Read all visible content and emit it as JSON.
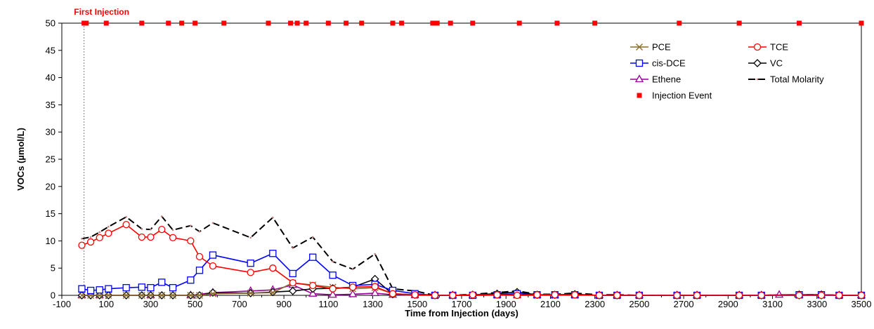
{
  "chart_data": {
    "type": "line",
    "title": "",
    "xlabel": "Time from Injection (days)",
    "ylabel": "VOCs (µmol/L)",
    "xlim": [
      -100,
      3500
    ],
    "ylim": [
      0,
      50
    ],
    "x_ticks": [
      -100,
      100,
      300,
      500,
      700,
      900,
      1100,
      1300,
      1500,
      1700,
      1900,
      2100,
      2300,
      2500,
      2700,
      2900,
      3100,
      3300,
      3500
    ],
    "y_ticks": [
      0,
      5,
      10,
      15,
      20,
      25,
      30,
      35,
      40,
      45,
      50
    ],
    "grid": false,
    "legend_position": "top-right",
    "annotation": {
      "text": "First Injection",
      "x": 0,
      "color": "#ff0000"
    },
    "series": [
      {
        "name": "PCE",
        "color": "#8b6d2c",
        "marker": "x",
        "dash": "solid",
        "x": [
          -10,
          30,
          70,
          110,
          190,
          260,
          300,
          350,
          400,
          480,
          520,
          580,
          750,
          850,
          940,
          1030,
          1120,
          1210,
          1310,
          1390,
          1490,
          1580,
          1660,
          1750,
          1860,
          1950,
          2040,
          2120,
          2210,
          2320,
          2400,
          2500,
          2670,
          2760,
          2950,
          3050,
          3220,
          3320,
          3400,
          3500
        ],
        "y": [
          0,
          0,
          0,
          0,
          0,
          0,
          0,
          0,
          0,
          0,
          0,
          0.3,
          0.4,
          0.5,
          2.3,
          1.9,
          1.5,
          1.2,
          1.4,
          0.3,
          0.1,
          0,
          0,
          0,
          0,
          0,
          0,
          0,
          0,
          0,
          0,
          0,
          0,
          0,
          0,
          0,
          0,
          0,
          0,
          0
        ]
      },
      {
        "name": "TCE",
        "color": "#ff0000",
        "marker": "circle",
        "dash": "solid",
        "x": [
          -10,
          30,
          70,
          110,
          190,
          260,
          300,
          350,
          400,
          480,
          520,
          580,
          750,
          850,
          940,
          1030,
          1120,
          1210,
          1310,
          1390,
          1490,
          1580,
          1660,
          1750,
          1860,
          1950,
          2040,
          2120,
          2210,
          2320,
          2400,
          2500,
          2670,
          2760,
          2950,
          3050,
          3220,
          3320,
          3400,
          3500
        ],
        "y": [
          9.2,
          9.8,
          10.6,
          11.4,
          13.0,
          10.7,
          10.7,
          12.1,
          10.6,
          10.0,
          7.1,
          5.4,
          4.2,
          5.0,
          2.3,
          1.8,
          1.2,
          1.5,
          1.6,
          0.3,
          0.1,
          0,
          0,
          0.1,
          0.1,
          0,
          0.1,
          0.1,
          0.1,
          0,
          0,
          0,
          0,
          0,
          0,
          0,
          0,
          0,
          0,
          0
        ]
      },
      {
        "name": "cis-DCE",
        "color": "#0000ff",
        "marker": "square",
        "dash": "solid",
        "x": [
          -10,
          30,
          70,
          110,
          190,
          260,
          300,
          350,
          400,
          480,
          520,
          580,
          750,
          850,
          940,
          1030,
          1120,
          1210,
          1310,
          1390,
          1490,
          1580,
          1660,
          1750,
          1860,
          1950,
          2040,
          2120,
          2210,
          2320,
          2400,
          2500,
          2670,
          2760,
          2950,
          3050,
          3220,
          3320,
          3400,
          3500
        ],
        "y": [
          1.2,
          0.9,
          1.0,
          1.2,
          1.4,
          1.5,
          1.4,
          2.4,
          1.4,
          2.8,
          4.6,
          7.4,
          5.9,
          7.7,
          4.0,
          7.0,
          3.7,
          1.8,
          2.0,
          0.9,
          0.3,
          0,
          0,
          0,
          0.1,
          0.3,
          0.1,
          0.1,
          0.1,
          0,
          0,
          0,
          0,
          0,
          0,
          0,
          0.1,
          0.1,
          0,
          0
        ]
      },
      {
        "name": "VC",
        "color": "#000000",
        "marker": "diamond",
        "dash": "solid",
        "x": [
          -10,
          30,
          70,
          110,
          190,
          260,
          300,
          350,
          400,
          480,
          520,
          580,
          750,
          850,
          940,
          1030,
          1120,
          1210,
          1310,
          1390,
          1490,
          1580,
          1660,
          1750,
          1860,
          1950,
          2040,
          2120,
          2210,
          2320,
          2400,
          2500,
          2670,
          2760,
          2950,
          3050,
          3220,
          3320,
          3400,
          3500
        ],
        "y": [
          0,
          0,
          0,
          0,
          0,
          0,
          0,
          0,
          0,
          0,
          0,
          0.5,
          0.4,
          0.6,
          0.8,
          1.2,
          1.3,
          1.5,
          3.0,
          0.2,
          0.1,
          0,
          0,
          0.1,
          0.3,
          0.6,
          0.1,
          0.1,
          0.2,
          0,
          0,
          0,
          0,
          0,
          0,
          0,
          0,
          0,
          0,
          0
        ]
      },
      {
        "name": "Ethene",
        "color": "#990099",
        "marker": "triangle",
        "dash": "solid",
        "x": [
          -10,
          70,
          300,
          480,
          580,
          750,
          850,
          940,
          1030,
          1120,
          1210,
          1310,
          1390,
          1490,
          1580,
          1660,
          1750,
          1860,
          1950,
          2040,
          2120,
          2210,
          2320,
          2400,
          2500,
          2670,
          2760,
          2950,
          3050,
          3130,
          3220,
          3320,
          3400,
          3500
        ],
        "y": [
          0,
          0,
          0,
          0,
          0.5,
          0.8,
          1.0,
          1.9,
          0.3,
          0.1,
          0.2,
          0.4,
          0.1,
          0,
          0,
          0,
          0,
          0.1,
          0,
          0,
          0,
          0.1,
          0,
          0,
          0,
          0,
          0,
          0,
          0,
          0.1,
          0.1,
          0.1,
          0,
          0
        ]
      },
      {
        "name": "Total Molarity",
        "color": "#000000",
        "marker": "dot",
        "dash": "dashed",
        "x": [
          -10,
          30,
          70,
          110,
          190,
          260,
          300,
          350,
          400,
          480,
          520,
          580,
          750,
          850,
          940,
          1030,
          1120,
          1210,
          1310,
          1390,
          1490,
          1580,
          1660,
          1750,
          1860,
          1950,
          2040,
          2120,
          2210,
          2320,
          2400,
          2500,
          2670,
          2760,
          2950,
          3050,
          3220,
          3320,
          3400,
          3500
        ],
        "y": [
          10.4,
          10.7,
          11.6,
          12.6,
          14.4,
          12.2,
          12.1,
          14.5,
          12.0,
          12.8,
          11.7,
          13.3,
          10.6,
          14.3,
          8.7,
          10.7,
          6.2,
          4.8,
          7.6,
          1.2,
          0.8,
          0,
          0,
          0.2,
          0.5,
          0.8,
          0.2,
          0.2,
          0.4,
          0.1,
          0.1,
          0,
          0,
          0,
          0,
          0,
          0.1,
          0.1,
          0,
          0
        ]
      },
      {
        "name": "Injection Event",
        "color": "#ff0000",
        "marker": "filled-square",
        "dash": "none",
        "x": [
          0,
          10,
          100,
          260,
          380,
          440,
          500,
          630,
          830,
          930,
          960,
          1000,
          1100,
          1180,
          1250,
          1390,
          1430,
          1570,
          1590,
          1650,
          1750,
          1960,
          2130,
          2300,
          2680,
          2950,
          3220,
          3500
        ],
        "y": [
          50,
          50,
          50,
          50,
          50,
          50,
          50,
          50,
          50,
          50,
          50,
          50,
          50,
          50,
          50,
          50,
          50,
          50,
          50,
          50,
          50,
          50,
          50,
          50,
          50,
          50,
          50,
          50
        ]
      }
    ]
  }
}
